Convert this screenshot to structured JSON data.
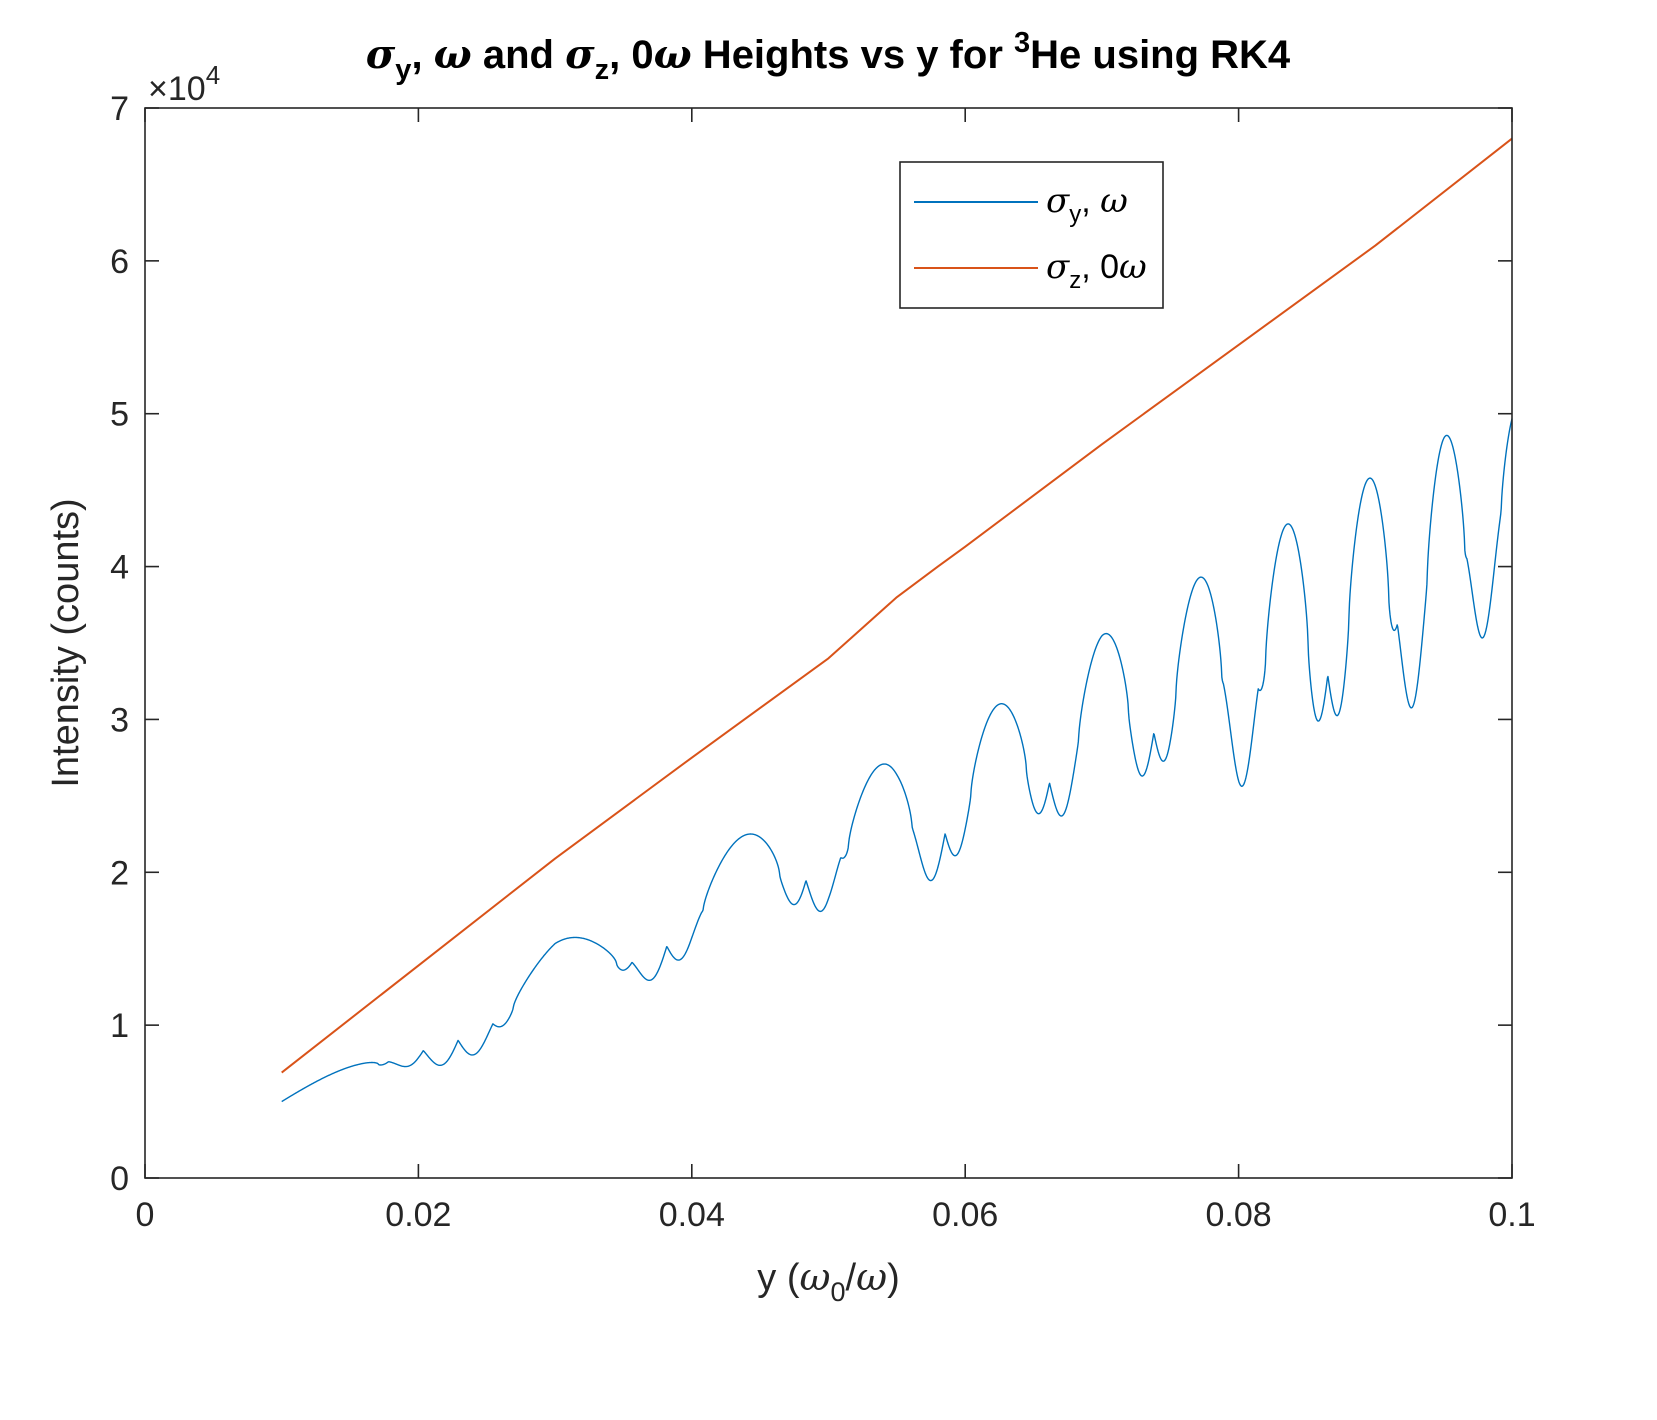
{
  "chart_data": {
    "type": "line",
    "title": {
      "segments": [
        {
          "text": "σ",
          "greek": true
        },
        {
          "text": "y",
          "sub": true
        },
        {
          "text": ", "
        },
        {
          "text": "ω",
          "greek": true
        },
        {
          "text": " and "
        },
        {
          "text": "σ",
          "greek": true
        },
        {
          "text": "z",
          "sub": true
        },
        {
          "text": ", 0"
        },
        {
          "text": "ω",
          "greek": true
        },
        {
          "text": " Heights vs y for "
        },
        {
          "text": "3",
          "sup": true
        },
        {
          "text": "He using RK4"
        }
      ]
    },
    "xlabel": {
      "segments": [
        {
          "text": "y ("
        },
        {
          "text": "ω",
          "greek": true
        },
        {
          "text": "0",
          "sub": true
        },
        {
          "text": "/"
        },
        {
          "text": "ω",
          "greek": true
        },
        {
          "text": ")"
        }
      ]
    },
    "ylabel": "Intensity (counts)",
    "exponent_label": {
      "base": "×10",
      "power": "4"
    },
    "xlim": [
      0,
      0.1
    ],
    "ylim": [
      0,
      70000
    ],
    "xticks": [
      0,
      0.02,
      0.04,
      0.06,
      0.08,
      0.1
    ],
    "xtick_labels": [
      "0",
      "0.02",
      "0.04",
      "0.06",
      "0.08",
      "0.1"
    ],
    "yticks": [
      0,
      10000,
      20000,
      30000,
      40000,
      50000,
      60000,
      70000
    ],
    "ytick_labels": [
      "0",
      "1",
      "2",
      "3",
      "4",
      "5",
      "6",
      "7"
    ],
    "grid": false,
    "legend_position": "top-right",
    "series": [
      {
        "name": {
          "segments": [
            {
              "text": "σ",
              "greek": true
            },
            {
              "text": "y",
              "sub": true
            },
            {
              "text": ", "
            },
            {
              "text": "ω",
              "greek": true
            }
          ]
        },
        "color": "#0072BD",
        "style": "oscillating",
        "x_range": [
          0.01,
          0.1
        ],
        "upper_envelope": [
          [
            0.01,
            5000
          ],
          [
            0.02,
            10500
          ],
          [
            0.03,
            15500
          ],
          [
            0.035,
            16500
          ],
          [
            0.04,
            20500
          ],
          [
            0.045,
            23000
          ],
          [
            0.05,
            25500
          ],
          [
            0.055,
            27500
          ],
          [
            0.06,
            30000
          ],
          [
            0.065,
            32000
          ],
          [
            0.07,
            35500
          ],
          [
            0.075,
            38000
          ],
          [
            0.08,
            41000
          ],
          [
            0.085,
            43500
          ],
          [
            0.09,
            46000
          ],
          [
            0.095,
            48500
          ],
          [
            0.1,
            50500
          ]
        ],
        "lower_envelope": [
          [
            0.01,
            3600
          ],
          [
            0.02,
            7000
          ],
          [
            0.03,
            9000
          ],
          [
            0.035,
            12000
          ],
          [
            0.04,
            14000
          ],
          [
            0.045,
            15500
          ],
          [
            0.05,
            17500
          ],
          [
            0.055,
            17500
          ],
          [
            0.06,
            20000
          ],
          [
            0.065,
            22000
          ],
          [
            0.07,
            24000
          ],
          [
            0.075,
            25500
          ],
          [
            0.08,
            25500
          ],
          [
            0.085,
            26500
          ],
          [
            0.09,
            29500
          ],
          [
            0.095,
            31000
          ],
          [
            0.1,
            38500
          ]
        ]
      },
      {
        "name": {
          "segments": [
            {
              "text": "σ",
              "greek": true
            },
            {
              "text": "z",
              "sub": true
            },
            {
              "text": ", 0"
            },
            {
              "text": "ω",
              "greek": true
            }
          ]
        },
        "color": "#D95319",
        "style": "line",
        "x": [
          0.01,
          0.02,
          0.03,
          0.04,
          0.05,
          0.055,
          0.058,
          0.06,
          0.07,
          0.08,
          0.09,
          0.1
        ],
        "values": [
          6900,
          13900,
          20900,
          27500,
          34000,
          38000,
          40000,
          41300,
          48000,
          54500,
          61000,
          68000
        ]
      }
    ]
  }
}
